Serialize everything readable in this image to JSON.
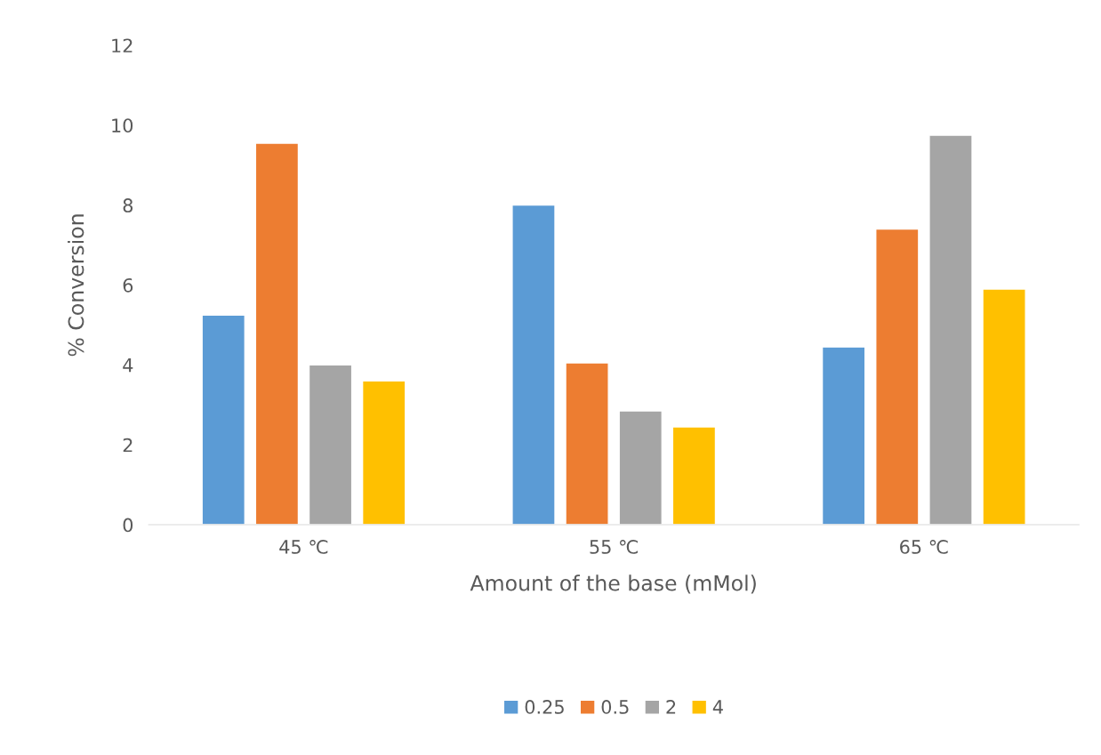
{
  "chart_data": {
    "type": "bar",
    "xlabel": "Amount of the base (mMol)",
    "ylabel": "% Conversion",
    "categories": [
      "45 ℃",
      "55 ℃",
      "65 ℃"
    ],
    "series": [
      {
        "name": "0.25",
        "color": "#5b9bd5",
        "values": [
          5.25,
          8.0,
          4.45
        ]
      },
      {
        "name": "0.5",
        "color": "#ed7d31",
        "values": [
          9.55,
          4.05,
          7.4
        ]
      },
      {
        "name": "2",
        "color": "#a5a5a5",
        "values": [
          4.0,
          2.85,
          9.75
        ]
      },
      {
        "name": "4",
        "color": "#ffc000",
        "values": [
          3.6,
          2.45,
          5.9
        ]
      }
    ],
    "ylim": [
      0,
      12
    ],
    "yticks": [
      0,
      2,
      4,
      6,
      8,
      10,
      12
    ],
    "grid": false,
    "legend": "bottom"
  }
}
